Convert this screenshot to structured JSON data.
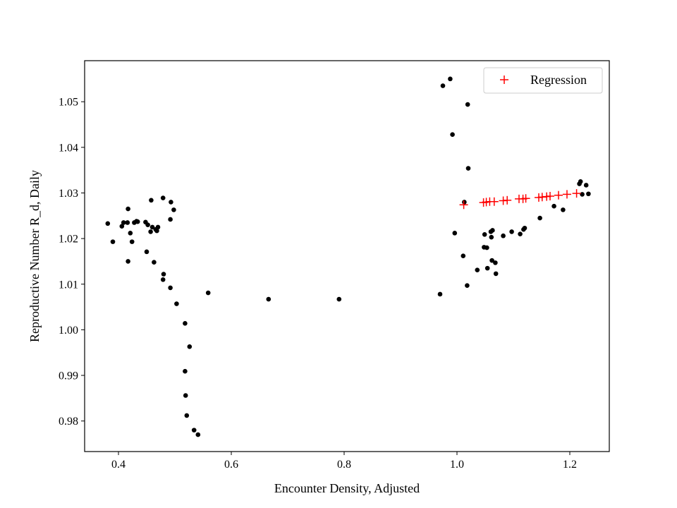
{
  "chart_data": {
    "type": "scatter",
    "xlabel": "Encounter Density, Adjusted",
    "ylabel": "Reproductive Number R_d, Daily",
    "xlim": [
      0.34,
      1.27
    ],
    "ylim": [
      0.9733,
      1.059
    ],
    "x_ticks": [
      0.4,
      0.6,
      0.8,
      1.0,
      1.2
    ],
    "y_ticks": [
      0.98,
      0.99,
      1.0,
      1.01,
      1.02,
      1.03,
      1.04,
      1.05
    ],
    "x_tick_labels": [
      "0.4",
      "0.6",
      "0.8",
      "1.0",
      "1.2"
    ],
    "y_tick_labels": [
      "0.98",
      "0.99",
      "1.00",
      "1.01",
      "1.02",
      "1.03",
      "1.04",
      "1.05"
    ],
    "grid": false,
    "legend_position": "top-right",
    "series": [
      {
        "name": "",
        "marker": "dot",
        "color": "#000000",
        "points": [
          [
            0.381,
            1.0233
          ],
          [
            0.39,
            1.0193
          ],
          [
            0.406,
            1.0227
          ],
          [
            0.409,
            1.0235
          ],
          [
            0.416,
            1.0235
          ],
          [
            0.417,
            1.0265
          ],
          [
            0.417,
            1.015
          ],
          [
            0.421,
            1.0212
          ],
          [
            0.424,
            1.0193
          ],
          [
            0.428,
            1.0235
          ],
          [
            0.432,
            1.0238
          ],
          [
            0.434,
            1.0237
          ],
          [
            0.448,
            1.0236
          ],
          [
            0.45,
            1.0171
          ],
          [
            0.452,
            1.023
          ],
          [
            0.457,
            1.0215
          ],
          [
            0.458,
            1.0284
          ],
          [
            0.46,
            1.0225
          ],
          [
            0.463,
            1.0148
          ],
          [
            0.466,
            1.022
          ],
          [
            0.468,
            1.0217
          ],
          [
            0.47,
            1.0225
          ],
          [
            0.479,
            1.0289
          ],
          [
            0.479,
            1.011
          ],
          [
            0.48,
            1.0122
          ],
          [
            0.492,
            1.0242
          ],
          [
            0.492,
            1.0092
          ],
          [
            0.493,
            1.028
          ],
          [
            0.498,
            1.0263
          ],
          [
            0.503,
            1.0057
          ],
          [
            0.518,
            1.0014
          ],
          [
            0.518,
            0.9909
          ],
          [
            0.519,
            0.9856
          ],
          [
            0.521,
            0.9812
          ],
          [
            0.526,
            0.9963
          ],
          [
            0.534,
            0.978
          ],
          [
            0.541,
            0.977
          ],
          [
            0.559,
            1.0081
          ],
          [
            0.666,
            1.0067
          ],
          [
            0.791,
            1.0067
          ],
          [
            0.97,
            1.0078
          ],
          [
            0.975,
            1.0535
          ],
          [
            0.988,
            1.055
          ],
          [
            0.992,
            1.0428
          ],
          [
            0.996,
            1.0212
          ],
          [
            1.011,
            1.0162
          ],
          [
            1.013,
            1.028
          ],
          [
            1.018,
            1.0097
          ],
          [
            1.019,
            1.0494
          ],
          [
            1.02,
            1.0354
          ],
          [
            1.036,
            1.0131
          ],
          [
            1.048,
            1.0181
          ],
          [
            1.049,
            1.0209
          ],
          [
            1.053,
            1.018
          ],
          [
            1.054,
            1.0135
          ],
          [
            1.06,
            1.0215
          ],
          [
            1.061,
            1.0203
          ],
          [
            1.062,
            1.0152
          ],
          [
            1.063,
            1.0218
          ],
          [
            1.068,
            1.0147
          ],
          [
            1.069,
            1.0123
          ],
          [
            1.082,
            1.0206
          ],
          [
            1.097,
            1.0215
          ],
          [
            1.112,
            1.021
          ],
          [
            1.118,
            1.022
          ],
          [
            1.12,
            1.0223
          ],
          [
            1.147,
            1.0245
          ],
          [
            1.172,
            1.0271
          ],
          [
            1.188,
            1.0263
          ],
          [
            1.217,
            1.032
          ],
          [
            1.219,
            1.0325
          ],
          [
            1.222,
            1.0297
          ],
          [
            1.229,
            1.0317
          ],
          [
            1.233,
            1.0298
          ]
        ]
      },
      {
        "name": "Regression",
        "marker": "plus",
        "color": "#ff0000",
        "points": [
          [
            1.012,
            1.0274
          ],
          [
            1.047,
            1.0279
          ],
          [
            1.052,
            1.028
          ],
          [
            1.058,
            1.0281
          ],
          [
            1.066,
            1.0281
          ],
          [
            1.082,
            1.0283
          ],
          [
            1.089,
            1.0284
          ],
          [
            1.11,
            1.0287
          ],
          [
            1.117,
            1.0287
          ],
          [
            1.122,
            1.0288
          ],
          [
            1.145,
            1.029
          ],
          [
            1.151,
            1.0291
          ],
          [
            1.159,
            1.0292
          ],
          [
            1.165,
            1.0293
          ],
          [
            1.18,
            1.0295
          ],
          [
            1.195,
            1.0297
          ],
          [
            1.212,
            1.0299
          ]
        ]
      }
    ]
  }
}
